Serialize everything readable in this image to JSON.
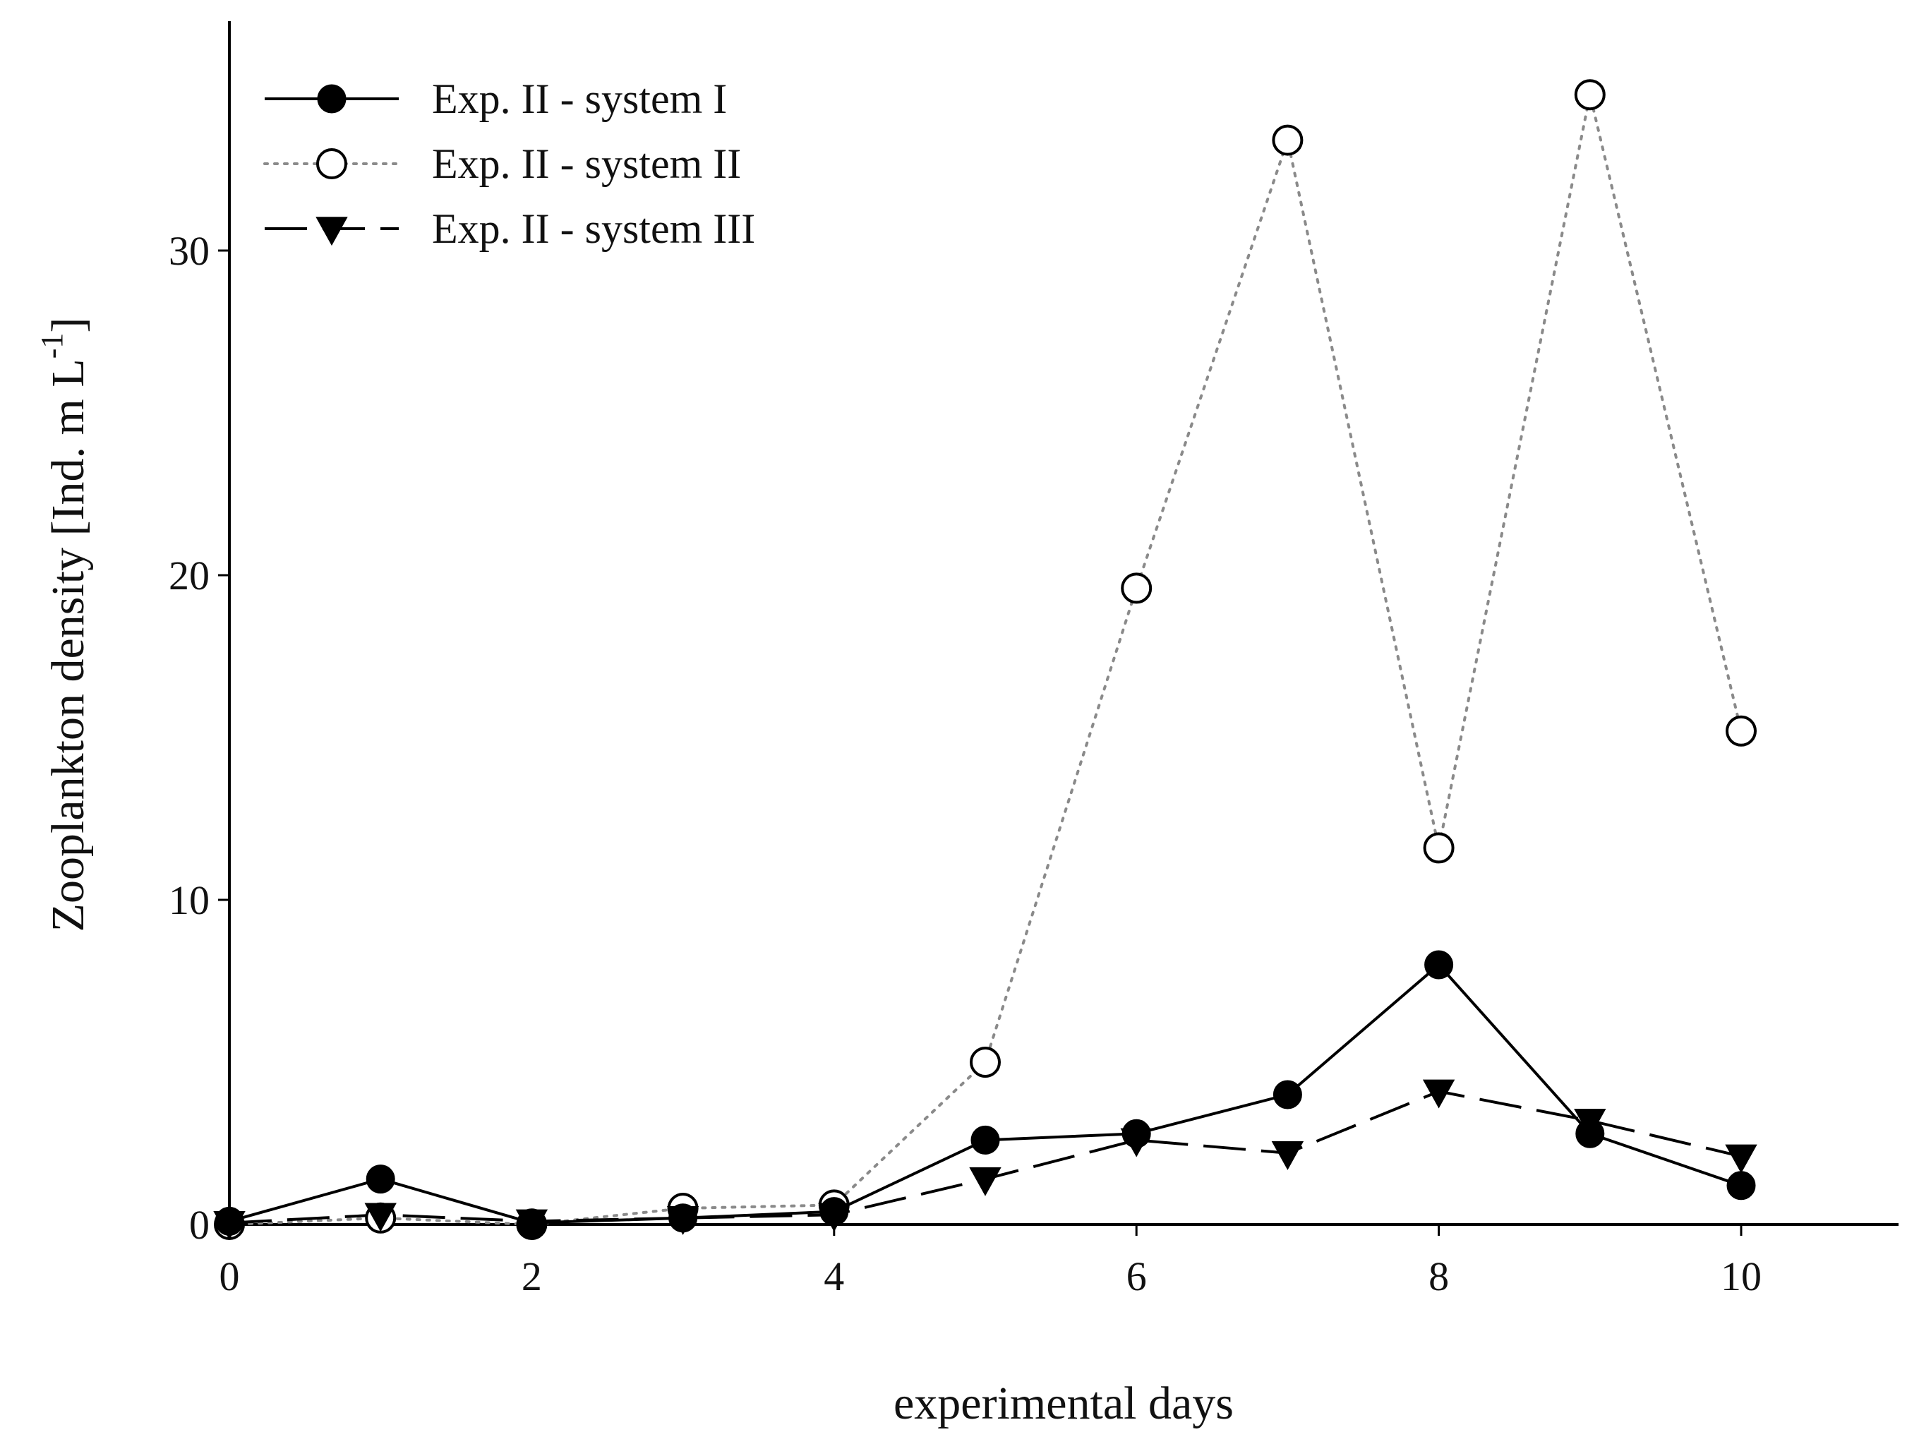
{
  "chart_data": {
    "type": "line",
    "title": "",
    "xlabel": "experimental days",
    "ylabel_main": "Zooplankton density [Ind. m L",
    "ylabel_sup": "-1",
    "ylabel_end": "]",
    "xlim": [
      0,
      11
    ],
    "ylim": [
      0,
      37
    ],
    "grid": false,
    "legend_position": "top-left",
    "x_ticks": [
      0,
      2,
      4,
      6,
      8,
      10
    ],
    "x_tick_labels": [
      "0",
      "2",
      "4",
      "6",
      "8",
      "10"
    ],
    "y_ticks": [
      0,
      10,
      20,
      30
    ],
    "y_tick_labels": [
      "0",
      "10",
      "20",
      "30"
    ],
    "series": [
      {
        "name": "Exp. II - system I",
        "marker": "filled-circle",
        "line": "solid",
        "color": "#000000",
        "x": [
          0,
          1,
          2,
          3,
          4,
          5,
          6,
          7,
          8,
          9,
          10
        ],
        "values": [
          0.1,
          1.4,
          0.05,
          0.2,
          0.4,
          2.6,
          2.8,
          4.0,
          8.0,
          2.8,
          1.2
        ]
      },
      {
        "name": "Exp. II - system II",
        "marker": "open-circle",
        "line": "dotted",
        "color": "#8a8a8a",
        "x": [
          0,
          1,
          2,
          3,
          4,
          5,
          6,
          7,
          8,
          9,
          10
        ],
        "values": [
          0.0,
          0.2,
          0.0,
          0.5,
          0.6,
          5.0,
          19.6,
          33.4,
          11.6,
          34.8,
          15.2
        ]
      },
      {
        "name": "Exp. II - system III",
        "marker": "filled-triangle-down",
        "line": "dashed",
        "color": "#000000",
        "x": [
          0,
          1,
          2,
          3,
          4,
          5,
          6,
          7,
          8,
          9,
          10
        ],
        "values": [
          0.05,
          0.3,
          0.1,
          0.2,
          0.3,
          1.4,
          2.6,
          2.2,
          4.1,
          3.2,
          2.1
        ]
      }
    ]
  }
}
